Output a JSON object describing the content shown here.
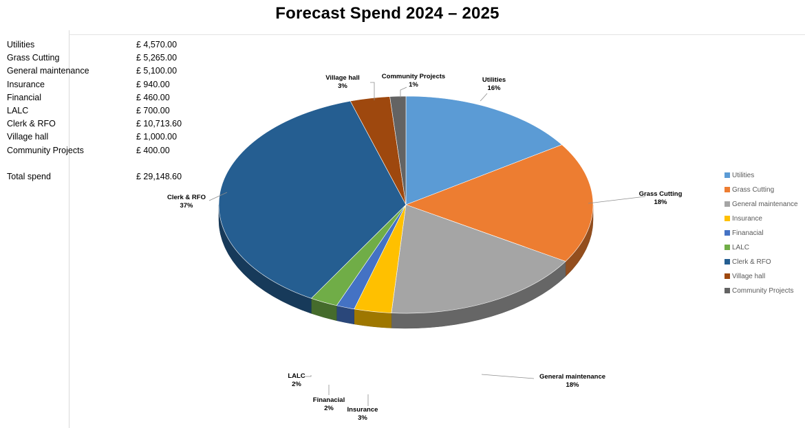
{
  "chart_data": {
    "type": "pie",
    "title": "Forecast Spend 2024 – 2025",
    "categories": [
      "Utilities",
      "Grass Cutting",
      "General maintenance",
      "Insurance",
      "Finanacial",
      "LALC",
      "Clerk & RFO",
      "Village hall",
      "Community Projects"
    ],
    "values": [
      4570.0,
      5265.0,
      5100.0,
      940.0,
      460.0,
      700.0,
      10713.6,
      1000.0,
      400.0
    ],
    "data_labels": [
      {
        "name": "Utilities",
        "percent": "16%"
      },
      {
        "name": "Grass Cutting",
        "percent": "18%"
      },
      {
        "name": "General maintenance",
        "percent": "18%"
      },
      {
        "name": "Insurance",
        "percent": "3%"
      },
      {
        "name": "Finanacial",
        "percent": "2%"
      },
      {
        "name": "LALC",
        "percent": "2%"
      },
      {
        "name": "Clerk & RFO",
        "percent": "37%"
      },
      {
        "name": "Village hall",
        "percent": "3%"
      },
      {
        "name": "Community Projects",
        "percent": "1%"
      }
    ],
    "colors": [
      "#5b9bd5",
      "#ed7d31",
      "#a5a5a5",
      "#ffc000",
      "#4472c4",
      "#70ad47",
      "#255e91",
      "#9e480e",
      "#636363"
    ],
    "legend_position": "right",
    "style": "3d"
  },
  "budget_table": {
    "rows": [
      {
        "label": "Utilities",
        "value": "£    4,570.00"
      },
      {
        "label": "Grass Cutting",
        "value": "£    5,265.00"
      },
      {
        "label": "General maintenance",
        "value": "£    5,100.00"
      },
      {
        "label": "Insurance",
        "value": "£       940.00"
      },
      {
        "label": "Financial",
        "value": "£       460.00"
      },
      {
        "label": "LALC",
        "value": "£       700.00"
      },
      {
        "label": "Clerk & RFO",
        "value": "£ 10,713.60"
      },
      {
        "label": "Village hall",
        "value": "£  1,000.00"
      },
      {
        "label": "Community Projects",
        "value": "£ 400.00"
      }
    ],
    "total": {
      "label": "Total spend",
      "value": "£  29,148.60"
    }
  },
  "legend": [
    "Utilities",
    "Grass Cutting",
    "General maintenance",
    "Insurance",
    "Finanacial",
    "LALC",
    "Clerk & RFO",
    "Village hall",
    "Community Projects"
  ]
}
